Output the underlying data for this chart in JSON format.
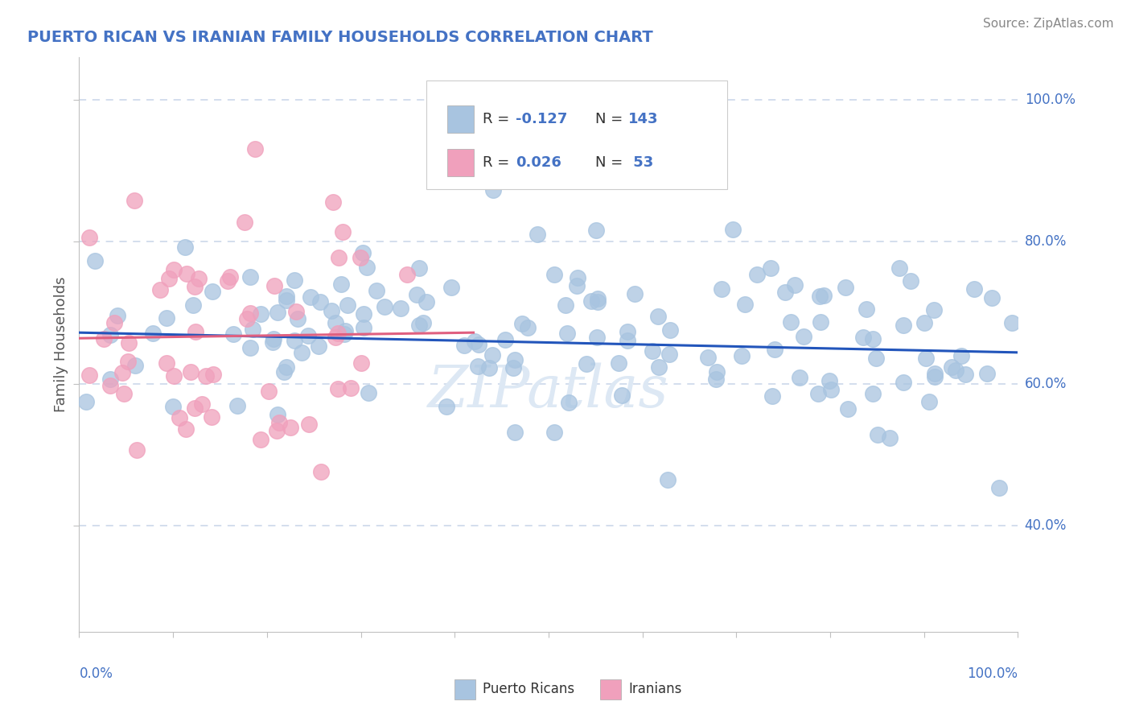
{
  "title": "PUERTO RICAN VS IRANIAN FAMILY HOUSEHOLDS CORRELATION CHART",
  "source": "Source: ZipAtlas.com",
  "ylabel": "Family Households",
  "x_range": [
    0.0,
    1.0
  ],
  "y_range": [
    0.25,
    1.06
  ],
  "ytick_labels": [
    "40.0%",
    "60.0%",
    "80.0%",
    "100.0%"
  ],
  "ytick_values": [
    0.4,
    0.6,
    0.8,
    1.0
  ],
  "blue_color": "#a8c4e0",
  "pink_color": "#f0a0bc",
  "blue_line_color": "#2255bb",
  "pink_line_color": "#e06080",
  "title_color": "#4472c4",
  "source_color": "#888888",
  "axis_color": "#c0c0c0",
  "grid_color": "#c8d4e8",
  "background_color": "#ffffff",
  "blue_trend_x": [
    0.0,
    1.0
  ],
  "blue_trend_y": [
    0.672,
    0.644
  ],
  "pink_trend_x": [
    0.0,
    0.42
  ],
  "pink_trend_y": [
    0.664,
    0.672
  ],
  "watermark": "ZIPatlas",
  "watermark_color": "#dde8f4"
}
